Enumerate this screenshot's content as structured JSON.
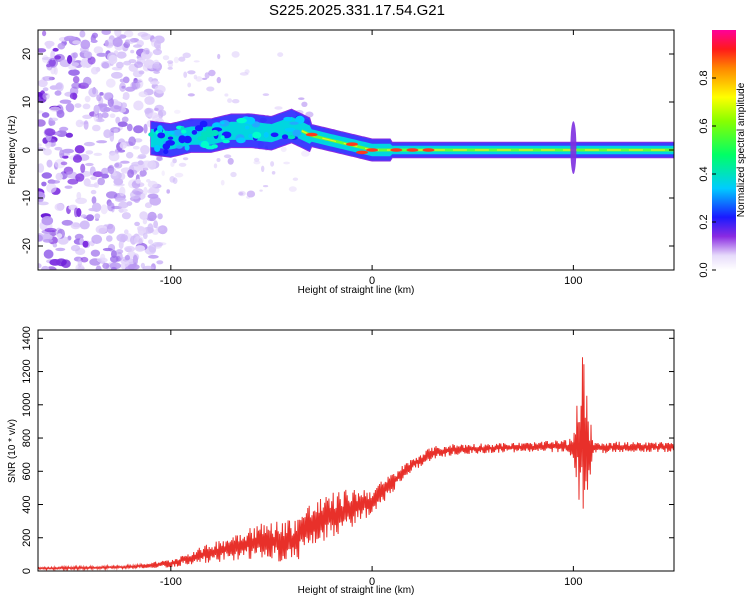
{
  "title": "S225.2025.331.17.54.G21",
  "colors": {
    "snr_line": "#e8302a",
    "frame": "#000000"
  },
  "chart_data": [
    {
      "type": "heatmap",
      "name": "spectrogram",
      "xlabel": "Height of straight line (km)",
      "ylabel": "Frequency (Hz)",
      "xlim": [
        -166,
        150
      ],
      "ylim": [
        -25,
        25
      ],
      "xticks": [
        -100,
        0,
        100
      ],
      "yticks": [
        -20,
        -10,
        0,
        10,
        20
      ],
      "colorbar": {
        "label": "Normalized spectral amplitude",
        "range": [
          0,
          1
        ],
        "ticks": [
          0.0,
          0.2,
          0.4,
          0.6,
          0.8
        ],
        "tick_labels": [
          "0.0",
          "0.2",
          "0.4",
          "0.6",
          "0.8"
        ]
      },
      "ridge_frequency": {
        "x": [
          -110,
          -100,
          -90,
          -80,
          -70,
          -60,
          -50,
          -40,
          -35,
          -30,
          -20,
          -10,
          0,
          10,
          30,
          60,
          95,
          100,
          105,
          150
        ],
        "y": [
          2.5,
          2,
          3,
          3,
          4,
          4,
          3.5,
          5,
          4,
          3,
          2,
          1,
          0,
          0,
          0,
          0,
          0,
          0,
          0,
          0
        ]
      },
      "noise_region": {
        "x_from": -166,
        "x_to": -110,
        "level": "low (0.1-0.3)"
      },
      "spike": {
        "x": 100,
        "freq_range": [
          -5,
          6
        ]
      }
    },
    {
      "type": "line",
      "name": "snr",
      "xlabel": "Height of straight line (km)",
      "ylabel": "SNR (10 * v/v)",
      "xlim": [
        -166,
        150
      ],
      "ylim": [
        0,
        1450
      ],
      "xticks": [
        -100,
        0,
        100
      ],
      "yticks": [
        0,
        200,
        400,
        600,
        800,
        1000,
        1200,
        1400
      ],
      "envelope": {
        "x": [
          -166,
          -140,
          -120,
          -100,
          -90,
          -80,
          -70,
          -60,
          -50,
          -40,
          -30,
          -20,
          -10,
          0,
          10,
          20,
          30,
          40,
          60,
          80,
          95,
          100,
          104,
          106,
          108,
          110,
          130,
          150
        ],
        "base": [
          15,
          20,
          25,
          45,
          80,
          110,
          140,
          170,
          180,
          180,
          270,
          330,
          380,
          420,
          530,
          640,
          710,
          730,
          740,
          745,
          750,
          740,
          760,
          750,
          745,
          745,
          745,
          745
        ],
        "amp": [
          8,
          10,
          10,
          25,
          40,
          60,
          80,
          110,
          120,
          140,
          150,
          140,
          120,
          80,
          60,
          40,
          40,
          35,
          30,
          30,
          40,
          60,
          500,
          650,
          200,
          40,
          30,
          30
        ]
      }
    }
  ]
}
